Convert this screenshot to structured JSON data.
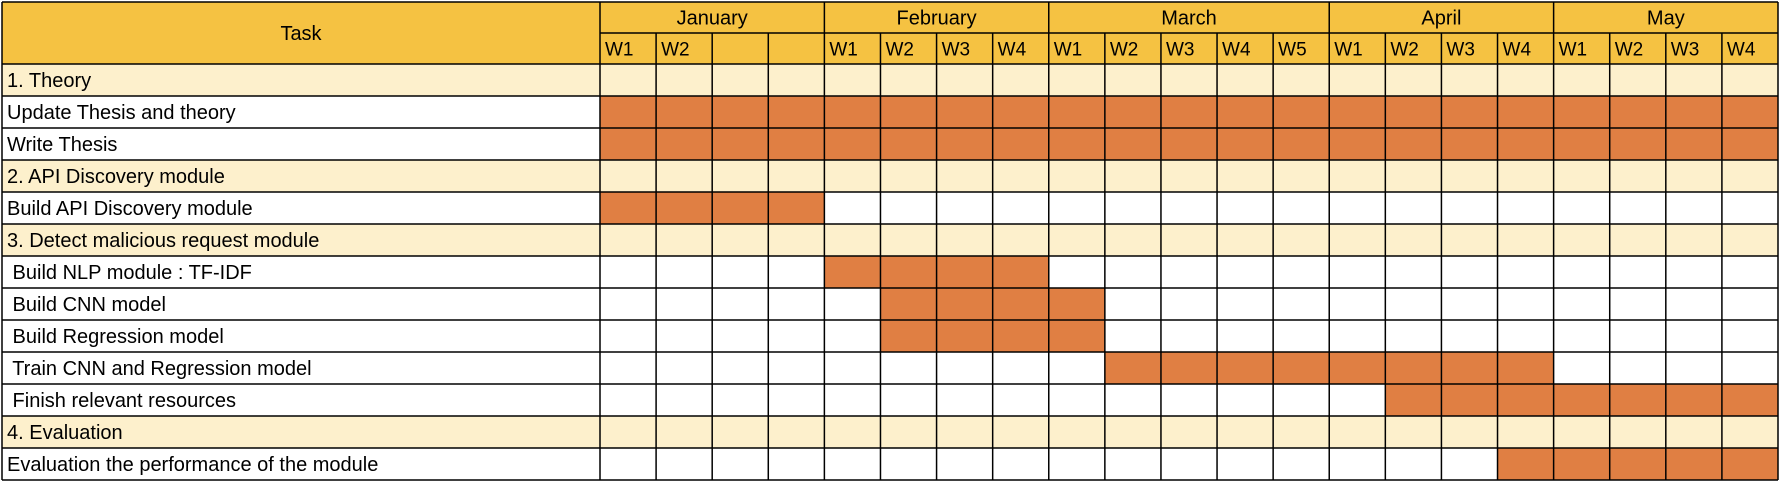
{
  "chart_data": {
    "type": "table",
    "title": "",
    "task_header": "Task",
    "months": [
      {
        "name": "January",
        "weeks": [
          "W1",
          "W2",
          "",
          ""
        ]
      },
      {
        "name": "February",
        "weeks": [
          "W1",
          "W2",
          "W3",
          "W4"
        ]
      },
      {
        "name": "March",
        "weeks": [
          "W1",
          "W2",
          "W3",
          "W4",
          "W5"
        ]
      },
      {
        "name": "April",
        "weeks": [
          "W1",
          "W2",
          "W3",
          "W4"
        ]
      },
      {
        "name": "May",
        "weeks": [
          "W1",
          "W2",
          "W3",
          "W4"
        ]
      }
    ],
    "tasks": [
      {
        "label": "1. Theory",
        "kind": "section",
        "active": []
      },
      {
        "label": "Update Thesis and theory",
        "kind": "task",
        "active": [
          [
            0,
            20
          ]
        ]
      },
      {
        "label": "Write Thesis",
        "kind": "task",
        "active": [
          [
            0,
            20
          ]
        ]
      },
      {
        "label": "2. API Discovery module",
        "kind": "section",
        "active": []
      },
      {
        "label": "Build API Discovery module",
        "kind": "task",
        "active": [
          [
            0,
            3
          ]
        ]
      },
      {
        "label": "3. Detect malicious request module",
        "kind": "section",
        "active": []
      },
      {
        "label": " Build NLP module : TF-IDF",
        "kind": "task",
        "active": [
          [
            4,
            7
          ]
        ]
      },
      {
        "label": " Build CNN model",
        "kind": "task",
        "active": [
          [
            5,
            8
          ]
        ]
      },
      {
        "label": " Build Regression model",
        "kind": "task",
        "active": [
          [
            5,
            8
          ]
        ]
      },
      {
        "label": " Train CNN and Regression model",
        "kind": "task",
        "active": [
          [
            9,
            16
          ]
        ]
      },
      {
        "label": " Finish relevant resources",
        "kind": "task",
        "active": [
          [
            14,
            20
          ]
        ]
      },
      {
        "label": "4. Evaluation",
        "kind": "section",
        "active": []
      },
      {
        "label": "Evaluation the performance of the module",
        "kind": "task",
        "active": [
          [
            16,
            20
          ]
        ]
      }
    ],
    "colors": {
      "header": "#F5C242",
      "section": "#FDF0CC",
      "active": "#E07F43",
      "empty": "#FFFFFF",
      "grid": "#000000"
    }
  }
}
